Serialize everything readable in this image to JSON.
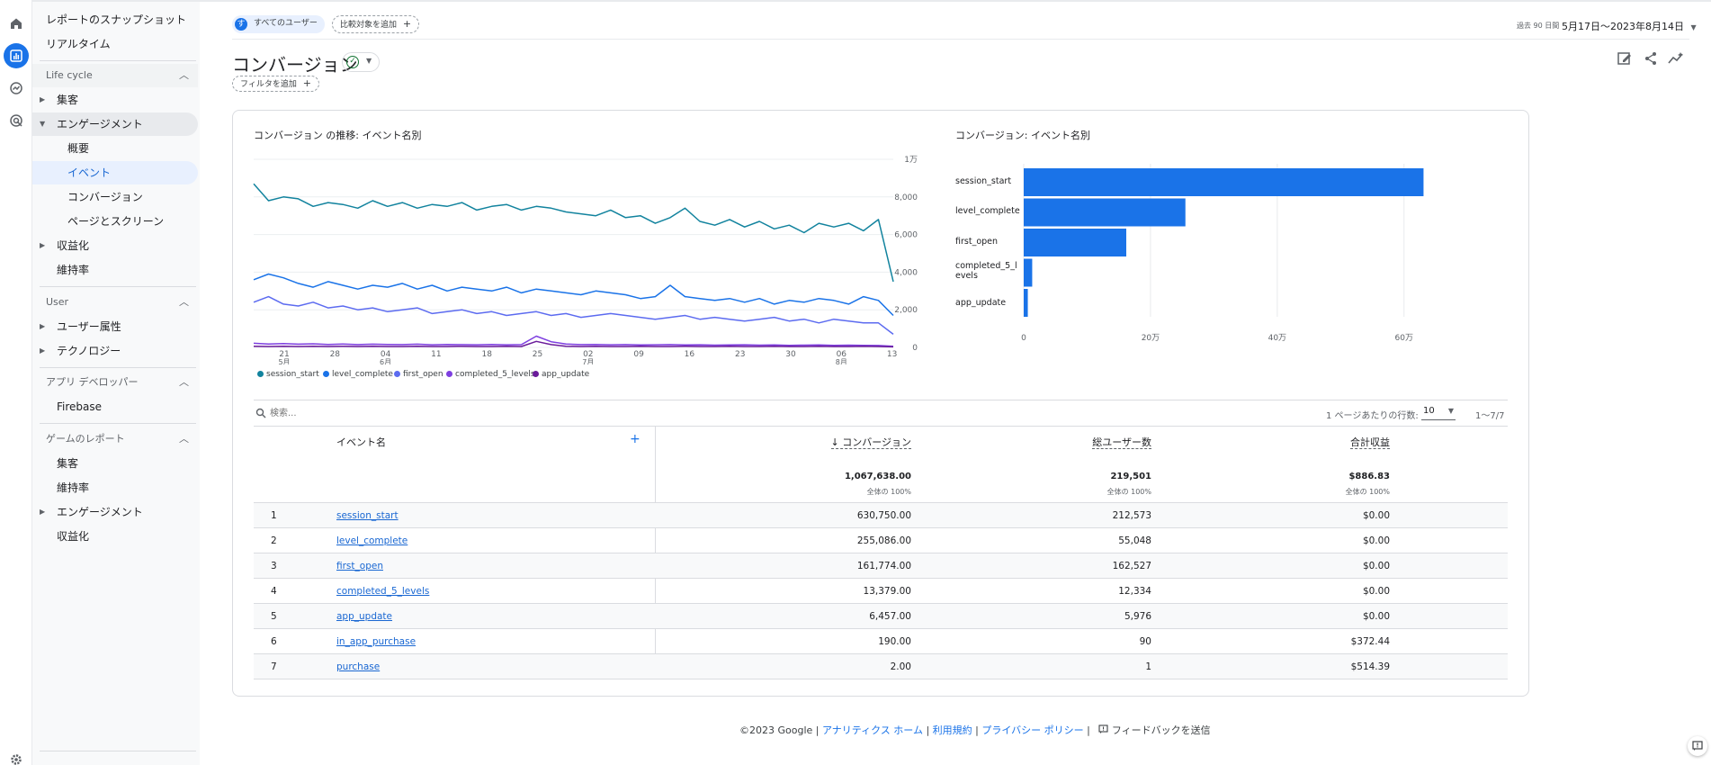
{
  "sidebar": {
    "snapshot": "レポートのスナップショット",
    "realtime": "リアルタイム",
    "lifecycle": {
      "label": "Life cycle",
      "acquisition": "集客",
      "engagement": "エンゲージメント",
      "overview": "概要",
      "events": "イベント",
      "conversions": "コンバージョン",
      "pages": "ページとスクリーン",
      "monetization": "収益化",
      "retention": "維持率"
    },
    "user": {
      "label": "User",
      "attributes": "ユーザー属性",
      "tech": "テクノロジー"
    },
    "appdev": {
      "label": "アプリ デベロッパー",
      "firebase": "Firebase"
    },
    "games": {
      "label": "ゲームのレポート",
      "acquisition": "集客",
      "retention": "維持率",
      "engagement": "エンゲージメント",
      "monetization": "収益化"
    }
  },
  "header": {
    "segment_avatar": "す",
    "segment_label": "すべてのユーザー",
    "compare_label": "比較対象を追加",
    "date_range_label": "過去 90 日間",
    "date_range": "5月17日～2023年8月14日",
    "title": "コンバージョン",
    "filter_label": "フィルタを追加"
  },
  "line_chart": {
    "title": "コンバージョン の推移: イベント名別",
    "y_ticks": [
      "1万",
      "8,000",
      "6,000",
      "4,000",
      "2,000",
      "0"
    ],
    "x_ticks": [
      "21",
      "28",
      "04",
      "11",
      "18",
      "25",
      "02",
      "09",
      "16",
      "23",
      "30",
      "06",
      "13"
    ],
    "month_ticks": [
      "5月",
      "6月",
      "7月",
      "8月"
    ],
    "legend": [
      "session_start",
      "level_complete",
      "first_open",
      "completed_5_levels",
      "app_update"
    ]
  },
  "bar_chart": {
    "title": "コンバージョン: イベント名別",
    "x_ticks": [
      "0",
      "20万",
      "40万",
      "60万"
    ],
    "categories": [
      "session_start",
      "level_complete",
      "first_open",
      "completed_5_l",
      "evels",
      "app_update"
    ]
  },
  "chart_data": [
    {
      "type": "line",
      "title": "コンバージョン の推移: イベント名別",
      "ylim": [
        0,
        10000
      ],
      "series_colors": [
        "#12839e",
        "#1a73e8",
        "#5c6bf0",
        "#7e3fe0",
        "#6a1b9a"
      ],
      "series": [
        {
          "name": "session_start",
          "values": [
            8700,
            7800,
            8000,
            7900,
            7500,
            7700,
            7600,
            7400,
            7800,
            7500,
            7700,
            7400,
            7600,
            7500,
            7700,
            7300,
            7500,
            7600,
            7300,
            7500,
            7400,
            7200,
            7100,
            7000,
            7300,
            6900,
            7000,
            6600,
            6900,
            7400,
            6700,
            6500,
            6800,
            6400,
            6700,
            6300,
            6500,
            6100,
            6600,
            6400,
            6600,
            6200,
            6800,
            3500
          ]
        },
        {
          "name": "level_complete",
          "values": [
            3600,
            3900,
            3700,
            3400,
            3200,
            3500,
            3300,
            3100,
            3300,
            3200,
            3400,
            3100,
            3300,
            3000,
            3200,
            3100,
            3000,
            3200,
            2900,
            3100,
            3000,
            2900,
            2800,
            3000,
            2900,
            2800,
            2600,
            2700,
            3300,
            2700,
            2600,
            2500,
            2600,
            2400,
            2600,
            2300,
            2500,
            2400,
            2600,
            2500,
            2300,
            2700,
            2500,
            1700
          ]
        },
        {
          "name": "first_open",
          "values": [
            2400,
            2700,
            2300,
            2200,
            2400,
            2100,
            2200,
            2000,
            2100,
            1900,
            2000,
            2100,
            1800,
            1900,
            2000,
            1800,
            1900,
            1700,
            1800,
            1900,
            1700,
            1800,
            1600,
            1700,
            1800,
            1700,
            1600,
            1500,
            1600,
            1700,
            1500,
            1600,
            1500,
            1400,
            1500,
            1600,
            1400,
            1500,
            1300,
            1500,
            1400,
            1300,
            1300,
            700
          ]
        },
        {
          "name": "completed_5_levels",
          "values": [
            220,
            180,
            200,
            170,
            190,
            160,
            180,
            150,
            170,
            160,
            150,
            170,
            140,
            160,
            150,
            140,
            160,
            140,
            150,
            600,
            300,
            180,
            150,
            160,
            140,
            150,
            130,
            140,
            150,
            130,
            140,
            120,
            130,
            140,
            120,
            130,
            110,
            120,
            130,
            110,
            120,
            110,
            100,
            60
          ]
        },
        {
          "name": "app_update",
          "values": [
            60,
            50,
            60,
            50,
            60,
            50,
            60,
            50,
            60,
            50,
            50,
            60,
            50,
            50,
            60,
            50,
            50,
            60,
            50,
            320,
            150,
            60,
            50,
            60,
            50,
            50,
            60,
            50,
            50,
            60,
            50,
            50,
            60,
            50,
            50,
            60,
            50,
            50,
            60,
            50,
            50,
            60,
            50,
            30
          ]
        }
      ]
    },
    {
      "type": "bar",
      "orientation": "horizontal",
      "title": "コンバージョン: イベント名別",
      "categories": [
        "session_start",
        "level_complete",
        "first_open",
        "completed_5_levels",
        "app_update"
      ],
      "values": [
        630750,
        255086,
        161774,
        13379,
        6457
      ],
      "xlim": [
        0,
        650000
      ],
      "color": "#1a73e8"
    }
  ],
  "table": {
    "search_placeholder": "検索...",
    "rows_per_page_label": "1 ページあたりの行数:",
    "rows_per_page": "10",
    "page_range": "1～7/7",
    "headers": {
      "event": "イベント名",
      "conversions": "↓ コンバージョン",
      "users": "総ユーザー数",
      "revenue": "合計収益"
    },
    "totals": {
      "conversions": "1,067,638.00",
      "users": "219,501",
      "revenue": "$886.83",
      "pct": "全体の 100%"
    },
    "rows": [
      {
        "n": "1",
        "event": "session_start",
        "conv": "630,750.00",
        "users": "212,573",
        "rev": "$0.00"
      },
      {
        "n": "2",
        "event": "level_complete",
        "conv": "255,086.00",
        "users": "55,048",
        "rev": "$0.00"
      },
      {
        "n": "3",
        "event": "first_open",
        "conv": "161,774.00",
        "users": "162,527",
        "rev": "$0.00"
      },
      {
        "n": "4",
        "event": "completed_5_levels",
        "conv": "13,379.00",
        "users": "12,334",
        "rev": "$0.00"
      },
      {
        "n": "5",
        "event": "app_update",
        "conv": "6,457.00",
        "users": "5,976",
        "rev": "$0.00"
      },
      {
        "n": "6",
        "event": "in_app_purchase",
        "conv": "190.00",
        "users": "90",
        "rev": "$372.44"
      },
      {
        "n": "7",
        "event": "purchase",
        "conv": "2.00",
        "users": "1",
        "rev": "$514.39"
      }
    ]
  },
  "footer": {
    "copyright": "©2023 Google |",
    "home": "アナリティクス ホーム",
    "sep": "|",
    "terms": "利用規約",
    "privacy": "プライバシー ポリシー",
    "feedback": "フィードバックを送信"
  },
  "icons": {
    "rail": [
      "home-icon",
      "reports-icon",
      "explore-icon",
      "advertising-icon",
      "settings-icon"
    ],
    "header": [
      "customize-report-icon",
      "share-icon",
      "insights-icon"
    ]
  }
}
